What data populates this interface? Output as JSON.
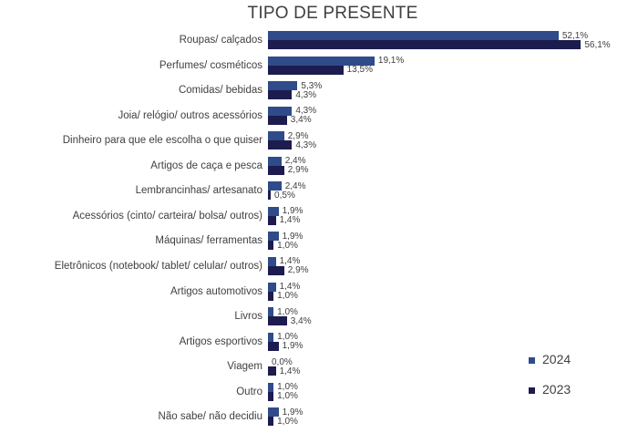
{
  "chart_data": {
    "type": "bar",
    "orientation": "horizontal",
    "title": "TIPO DE PRESENTE",
    "categories": [
      "Roupas/ calçados",
      "Perfumes/ cosméticos",
      "Comidas/ bebidas",
      "Joia/ relógio/ outros acessórios",
      "Dinheiro para que ele escolha o que quiser",
      "Artigos de caça e pesca",
      "Lembrancinhas/ artesanato",
      "Acessórios (cinto/ carteira/ bolsa/ outros)",
      "Máquinas/ ferramentas",
      "Eletrônicos (notebook/ tablet/ celular/ outros)",
      "Artigos automotivos",
      "Livros",
      "Artigos esportivos",
      "Viagem",
      "Outro",
      "Não sabe/ não decidiu"
    ],
    "series": [
      {
        "name": "2024",
        "color": "#2f4b8a",
        "values": [
          52.1,
          19.1,
          5.3,
          4.3,
          2.9,
          2.4,
          2.4,
          1.9,
          1.9,
          1.4,
          1.4,
          1.0,
          1.0,
          0.0,
          1.0,
          1.9
        ],
        "labels": [
          "52,1%",
          "19,1%",
          "5,3%",
          "4,3%",
          "2,9%",
          "2,4%",
          "2,4%",
          "1,9%",
          "1,9%",
          "1,4%",
          "1,4%",
          "1,0%",
          "1,0%",
          "0,0%",
          "1,0%",
          "1,9%"
        ]
      },
      {
        "name": "2023",
        "color": "#1c1c4e",
        "values": [
          56.1,
          13.5,
          4.3,
          3.4,
          4.3,
          2.9,
          0.5,
          1.4,
          1.0,
          2.9,
          1.0,
          3.4,
          1.9,
          1.4,
          1.0,
          1.0
        ],
        "labels": [
          "56,1%",
          "13,5%",
          "4,3%",
          "3,4%",
          "4,3%",
          "2,9%",
          "0,5%",
          "1,4%",
          "1,0%",
          "2,9%",
          "1,0%",
          "3,4%",
          "1,9%",
          "1,4%",
          "1,0%",
          "1,0%"
        ]
      }
    ],
    "legend_position": "bottom-right",
    "grid": false
  }
}
